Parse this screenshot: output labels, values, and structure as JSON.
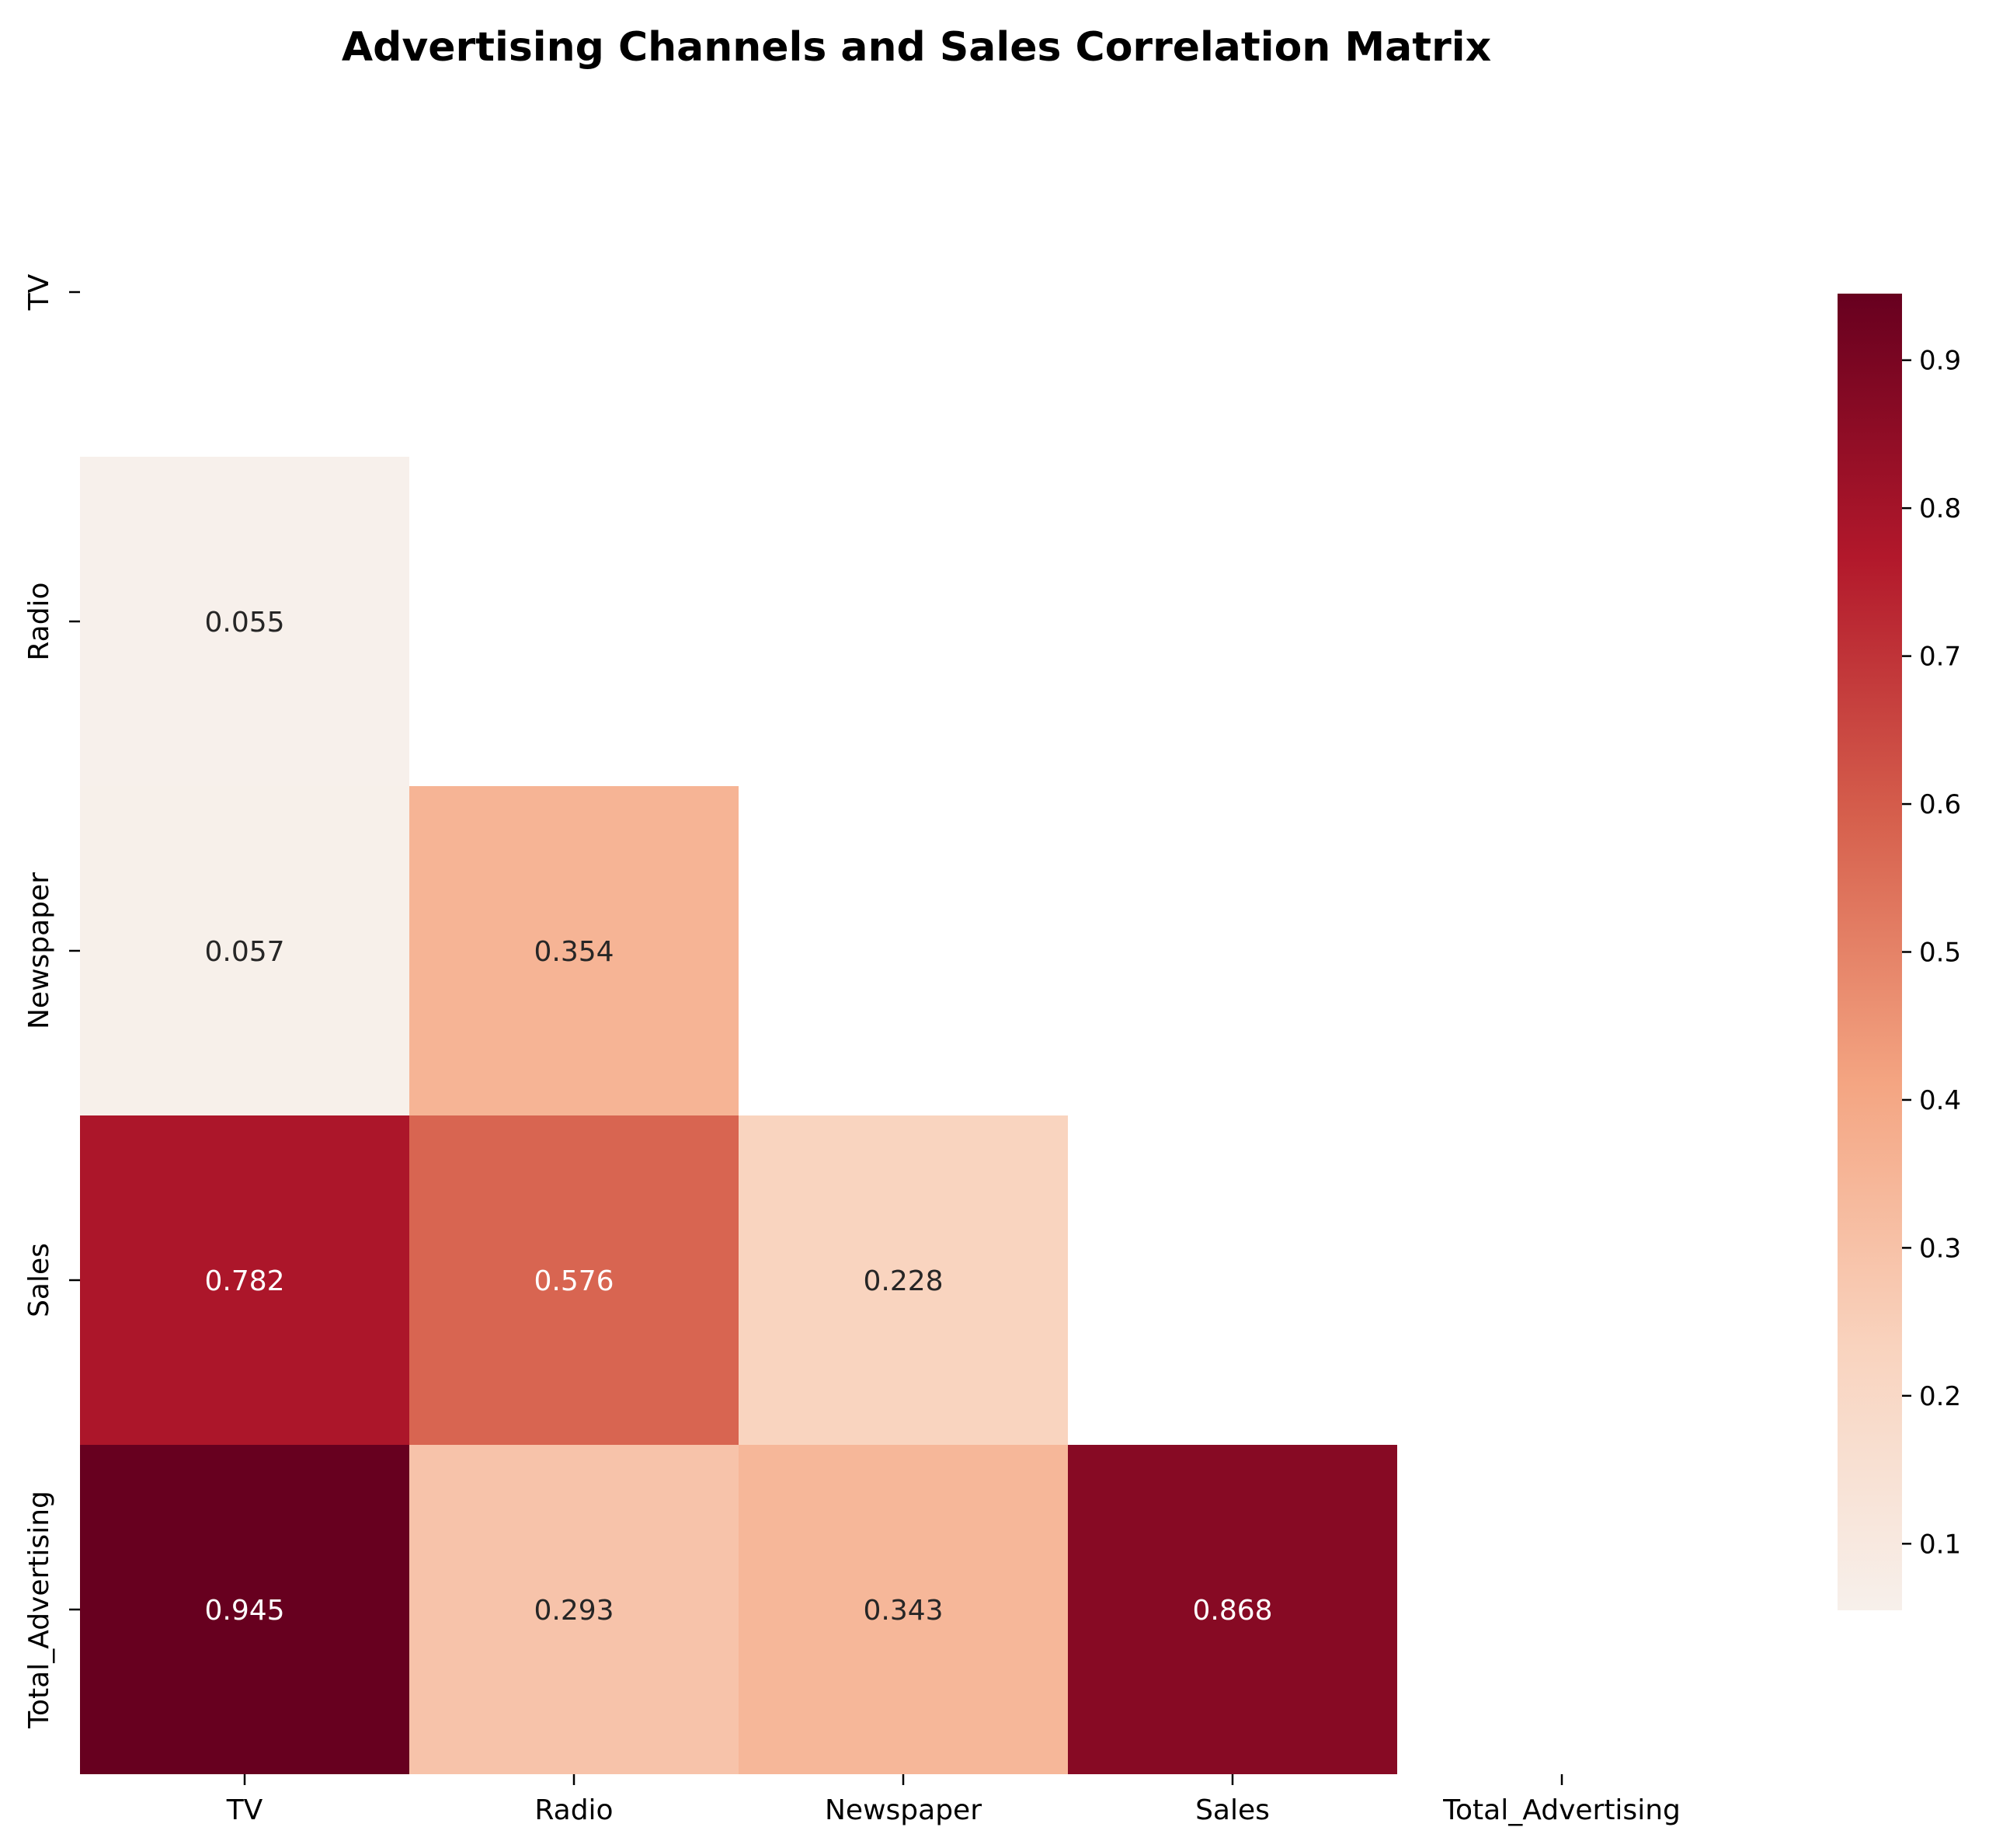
{
  "chart_data": {
    "type": "heatmap",
    "title": "Advertising Channels and Sales Correlation Matrix",
    "variables": [
      "TV",
      "Radio",
      "Newspaper",
      "Sales",
      "Total_Advertising"
    ],
    "mask": "upper-triangle-and-diagonal",
    "cells": [
      {
        "row": "Radio",
        "col": "TV",
        "value": 0.055,
        "label": "0.055"
      },
      {
        "row": "Newspaper",
        "col": "TV",
        "value": 0.057,
        "label": "0.057"
      },
      {
        "row": "Newspaper",
        "col": "Radio",
        "value": 0.354,
        "label": "0.354"
      },
      {
        "row": "Sales",
        "col": "TV",
        "value": 0.782,
        "label": "0.782"
      },
      {
        "row": "Sales",
        "col": "Radio",
        "value": 0.576,
        "label": "0.576"
      },
      {
        "row": "Sales",
        "col": "Newspaper",
        "value": 0.228,
        "label": "0.228"
      },
      {
        "row": "Total_Advertising",
        "col": "TV",
        "value": 0.945,
        "label": "0.945"
      },
      {
        "row": "Total_Advertising",
        "col": "Radio",
        "value": 0.293,
        "label": "0.293"
      },
      {
        "row": "Total_Advertising",
        "col": "Newspaper",
        "value": 0.343,
        "label": "0.343"
      },
      {
        "row": "Total_Advertising",
        "col": "Sales",
        "value": 0.868,
        "label": "0.868"
      }
    ],
    "colormap": "RdBu_r (white to dark red)",
    "colorbar": {
      "range": [
        0.055,
        0.945
      ],
      "ticks": [
        0.1,
        0.2,
        0.3,
        0.4,
        0.5,
        0.6,
        0.7,
        0.8,
        0.9
      ],
      "tick_labels": [
        "0.1",
        "0.2",
        "0.3",
        "0.4",
        "0.5",
        "0.6",
        "0.7",
        "0.8",
        "0.9"
      ]
    },
    "colors": {
      "stops": [
        "#f7f0eb",
        "#f9d3be",
        "#f4a582",
        "#d6604d",
        "#b2182b",
        "#67001f"
      ],
      "text_dark": "#262626",
      "text_light": "#ffffff"
    },
    "grid": false,
    "legend": "colorbar-right"
  }
}
